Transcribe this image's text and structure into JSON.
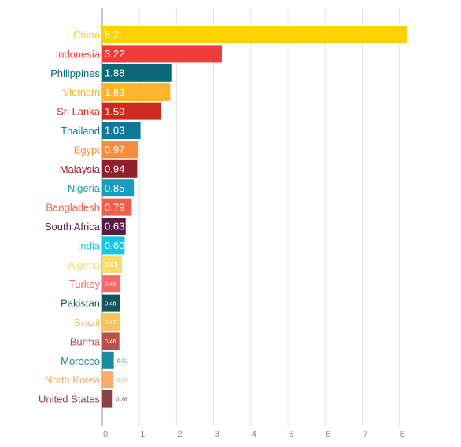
{
  "chart_data": {
    "type": "bar",
    "orientation": "horizontal",
    "grid": true,
    "xlim": [
      0,
      8.2
    ],
    "xticks": [
      "0",
      "1",
      "2",
      "3",
      "4",
      "5",
      "6",
      "7",
      "8"
    ],
    "categories": [
      "China",
      "Indonesia",
      "Philippines",
      "Vietnam",
      "Sri Lanka",
      "Thailand",
      "Egypt",
      "Malaysia",
      "Nigeria",
      "Bangladesh",
      "South Africa",
      "India",
      "Algeria",
      "Turkey",
      "Pakistan",
      "Brazil",
      "Burma",
      "Morocco",
      "North Korea",
      "United States"
    ],
    "values": [
      8.2,
      3.22,
      1.88,
      1.83,
      1.59,
      1.03,
      0.97,
      0.94,
      0.85,
      0.79,
      0.63,
      0.6,
      0.53,
      0.49,
      0.48,
      0.47,
      0.46,
      0.31,
      0.3,
      0.28
    ],
    "value_labels": [
      "8.2",
      "3.22",
      "1.88",
      "1.83",
      "1.59",
      "1.03",
      "0.97",
      "0.94",
      "0.85",
      "0.79",
      "0.63",
      "0.60",
      "0.53",
      "0.49",
      "0.48",
      "0.47",
      "0.46",
      "0.31",
      "0.30",
      "0.28"
    ],
    "colors": [
      "#FFD100",
      "#EF3B39",
      "#0B6878",
      "#FDB42A",
      "#CE2B1F",
      "#0E7A98",
      "#F58E3E",
      "#8F1F2C",
      "#1A9BBE",
      "#F05E4B",
      "#5A1B47",
      "#17C3E6",
      "#F7DC6F",
      "#F26B6B",
      "#15565E",
      "#F6C45E",
      "#B75149",
      "#1B8AA3",
      "#F6AA6B",
      "#8C3F45"
    ]
  }
}
